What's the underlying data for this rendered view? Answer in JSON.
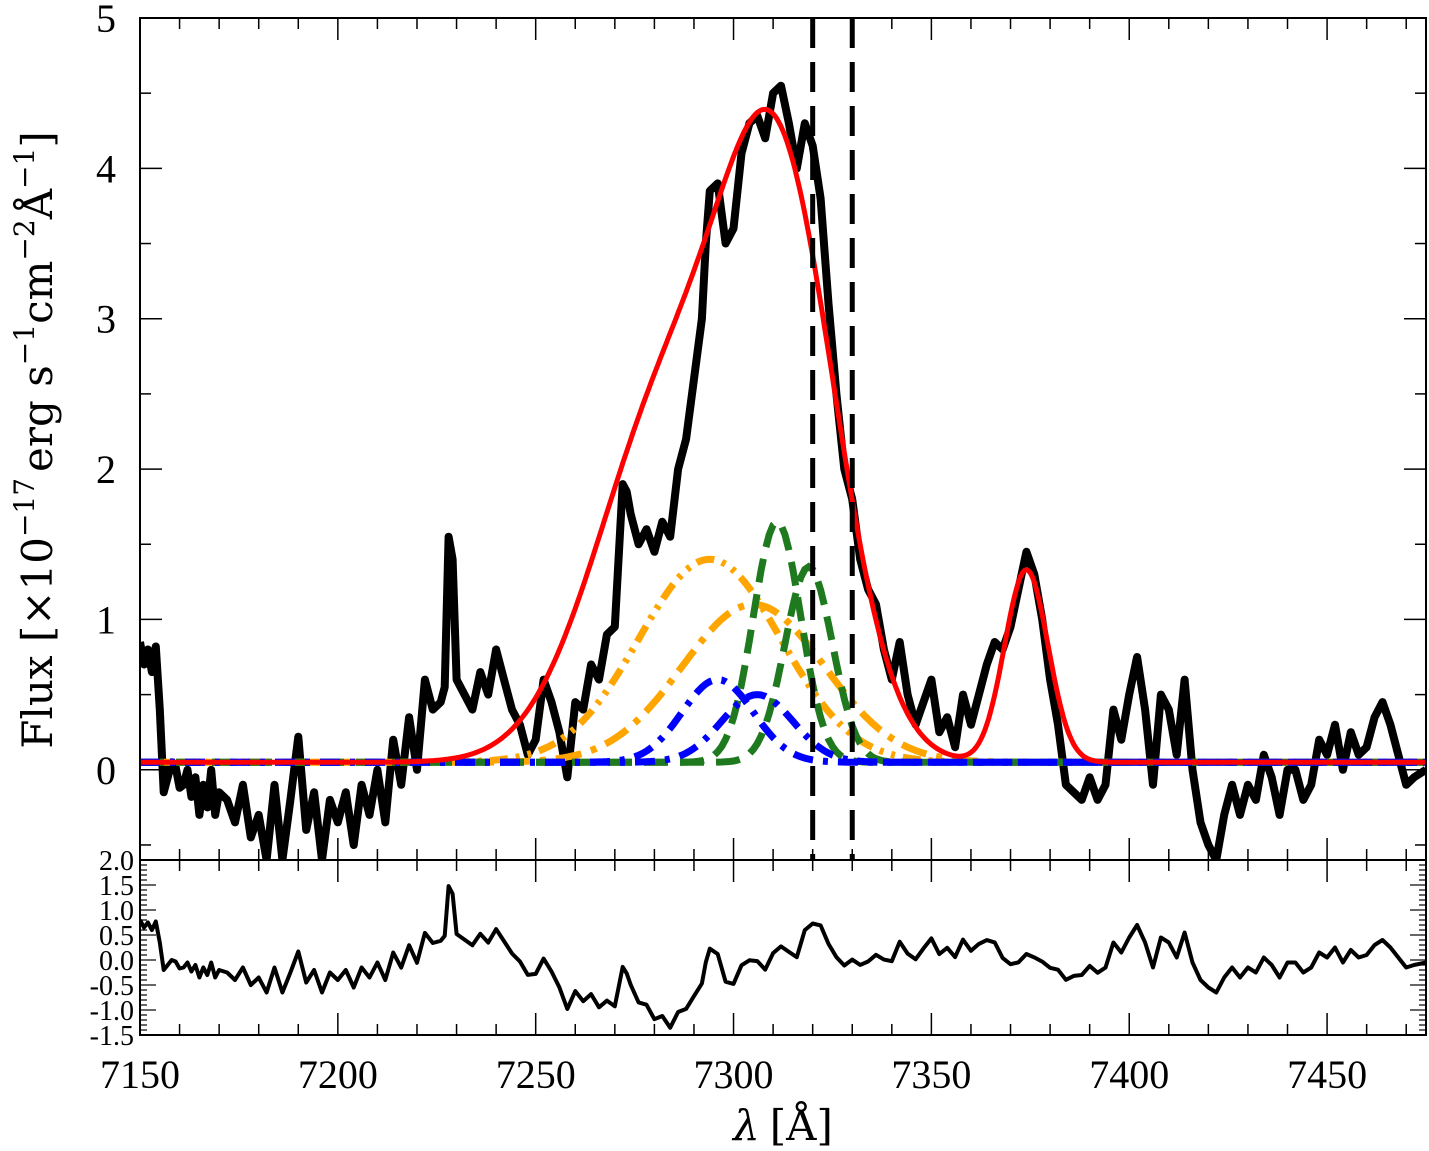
{
  "chart_data": [
    {
      "type": "line",
      "panel": "main",
      "xlabel_symbol": "λ",
      "xlabel_unit": "[Å]",
      "ylabel": {
        "prefix": "Flux [",
        "times": "×",
        "ten": "10",
        "exp1": "−17",
        "erg": "erg s",
        "exp2": "−1",
        "cm": "cm",
        "exp3": "−2",
        "angstrom": "Å",
        "exp4": "−1",
        "suffix": "]"
      },
      "xlim": [
        7150,
        7475
      ],
      "ylim": [
        -0.6,
        5
      ],
      "xticks": [
        7150,
        7200,
        7250,
        7300,
        7350,
        7400,
        7450
      ],
      "yticks": [
        0,
        1,
        2,
        3,
        4,
        5
      ],
      "vlines": [
        7320,
        7330
      ],
      "colors": {
        "data": "#000000",
        "fit": "#ff0000",
        "orange": "#ffa500",
        "green": "#1f7a1f",
        "blue": "#0000ff"
      },
      "series": [
        {
          "role": "data",
          "x": [
            7150,
            7151,
            7152,
            7153,
            7154,
            7155,
            7156,
            7157,
            7158,
            7159,
            7160,
            7161,
            7162,
            7163,
            7164,
            7165,
            7166,
            7167,
            7168,
            7169,
            7170,
            7172,
            7174,
            7176,
            7178,
            7180,
            7182,
            7184,
            7186,
            7188,
            7190,
            7192,
            7194,
            7196,
            7198,
            7200,
            7202,
            7204,
            7206,
            7208,
            7210,
            7212,
            7214,
            7216,
            7218,
            7220,
            7222,
            7224,
            7226,
            7227,
            7228,
            7229,
            7230,
            7232,
            7234,
            7236,
            7238,
            7240,
            7242,
            7244,
            7246,
            7248,
            7250,
            7252,
            7254,
            7256,
            7258,
            7260,
            7262,
            7264,
            7266,
            7268,
            7270,
            7272,
            7273,
            7274,
            7276,
            7278,
            7280,
            7282,
            7284,
            7286,
            7288,
            7290,
            7292,
            7293,
            7294,
            7296,
            7298,
            7300,
            7302,
            7304,
            7306,
            7308,
            7310,
            7312,
            7314,
            7316,
            7318,
            7320,
            7322,
            7324,
            7326,
            7328,
            7330,
            7332,
            7334,
            7336,
            7338,
            7340,
            7342,
            7344,
            7346,
            7348,
            7350,
            7352,
            7354,
            7356,
            7358,
            7360,
            7362,
            7364,
            7366,
            7368,
            7370,
            7372,
            7374,
            7376,
            7378,
            7380,
            7382,
            7384,
            7386,
            7388,
            7390,
            7392,
            7394,
            7396,
            7398,
            7400,
            7402,
            7404,
            7406,
            7408,
            7410,
            7412,
            7414,
            7416,
            7418,
            7420,
            7422,
            7424,
            7426,
            7428,
            7430,
            7432,
            7434,
            7436,
            7438,
            7440,
            7442,
            7444,
            7446,
            7448,
            7450,
            7452,
            7454,
            7456,
            7458,
            7460,
            7462,
            7464,
            7466,
            7468,
            7470,
            7472,
            7475
          ],
          "y": [
            0.85,
            0.7,
            0.8,
            0.65,
            0.82,
            0.4,
            -0.15,
            -0.05,
            0.05,
            0.02,
            -0.12,
            -0.1,
            0.0,
            -0.18,
            -0.05,
            -0.3,
            -0.1,
            -0.25,
            0.0,
            -0.3,
            -0.15,
            -0.2,
            -0.35,
            -0.1,
            -0.45,
            -0.3,
            -0.6,
            -0.1,
            -0.6,
            -0.2,
            0.22,
            -0.4,
            -0.15,
            -0.6,
            -0.2,
            -0.35,
            -0.15,
            -0.5,
            -0.1,
            -0.3,
            0.0,
            -0.35,
            0.2,
            -0.1,
            0.35,
            0.0,
            0.6,
            0.4,
            0.45,
            0.55,
            1.55,
            1.4,
            0.6,
            0.5,
            0.4,
            0.65,
            0.5,
            0.8,
            0.6,
            0.4,
            0.3,
            0.1,
            0.2,
            0.6,
            0.45,
            0.25,
            -0.05,
            0.45,
            0.4,
            0.7,
            0.6,
            0.9,
            0.95,
            1.9,
            1.85,
            1.7,
            1.5,
            1.6,
            1.45,
            1.65,
            1.55,
            2.0,
            2.2,
            2.6,
            3.0,
            3.5,
            3.85,
            3.9,
            3.5,
            3.6,
            4.1,
            4.3,
            4.35,
            4.2,
            4.5,
            4.55,
            4.3,
            4.0,
            4.3,
            4.15,
            3.8,
            3.1,
            2.5,
            2.0,
            1.8,
            1.4,
            1.2,
            1.1,
            0.8,
            0.6,
            0.85,
            0.5,
            0.3,
            0.45,
            0.6,
            0.25,
            0.35,
            0.15,
            0.5,
            0.3,
            0.5,
            0.7,
            0.85,
            0.8,
            0.95,
            1.2,
            1.45,
            1.3,
            1.0,
            0.6,
            0.3,
            -0.1,
            -0.15,
            -0.2,
            -0.05,
            -0.2,
            -0.1,
            0.4,
            0.2,
            0.5,
            0.75,
            0.4,
            -0.1,
            0.5,
            0.4,
            0.1,
            0.6,
            0.0,
            -0.35,
            -0.5,
            -0.6,
            -0.3,
            -0.1,
            -0.3,
            -0.1,
            -0.2,
            0.1,
            -0.05,
            -0.3,
            0.0,
            0.0,
            -0.2,
            -0.1,
            0.2,
            0.1,
            0.3,
            0.0,
            0.25,
            0.1,
            0.15,
            0.35,
            0.45,
            0.3,
            0.1,
            -0.1,
            -0.05,
            0.0
          ]
        },
        {
          "role": "fit",
          "components": [
            {
              "amp": 3.6,
              "center": 7312,
              "sigma": 14.5
            },
            {
              "amp": 2.3,
              "center": 7283,
              "sigma": 18
            },
            {
              "amp": 1.28,
              "center": 7374,
              "sigma": 5.5
            }
          ],
          "baseline": 0.05
        },
        {
          "role": "orange-dash-dot-dot",
          "gauss": {
            "amp": 1.35,
            "center": 7294,
            "sigma": 18
          }
        },
        {
          "role": "orange-dash-dot",
          "gauss": {
            "amp": 1.05,
            "center": 7305,
            "sigma": 18
          }
        },
        {
          "role": "green-dash-a",
          "gauss": {
            "amp": 1.6,
            "center": 7311,
            "sigma": 6
          }
        },
        {
          "role": "green-dash-b",
          "gauss": {
            "amp": 1.3,
            "center": 7319,
            "sigma": 6
          }
        },
        {
          "role": "blue-dash-dot-a",
          "gauss": {
            "amp": 0.55,
            "center": 7296,
            "sigma": 9
          }
        },
        {
          "role": "blue-dash-dot-b",
          "gauss": {
            "amp": 0.45,
            "center": 7306,
            "sigma": 9
          }
        }
      ]
    },
    {
      "type": "line",
      "panel": "residual",
      "xlim": [
        7150,
        7475
      ],
      "ylim": [
        -1.5,
        2.0
      ],
      "yticks": [
        -1.5,
        -1.0,
        -0.5,
        0.0,
        0.5,
        1.0,
        1.5,
        2.0
      ],
      "ytick_labels": [
        "-1.5",
        "-1.0",
        "-0.5",
        "0.0",
        "0.5",
        "1.0",
        "1.5",
        "2.0"
      ]
    }
  ]
}
